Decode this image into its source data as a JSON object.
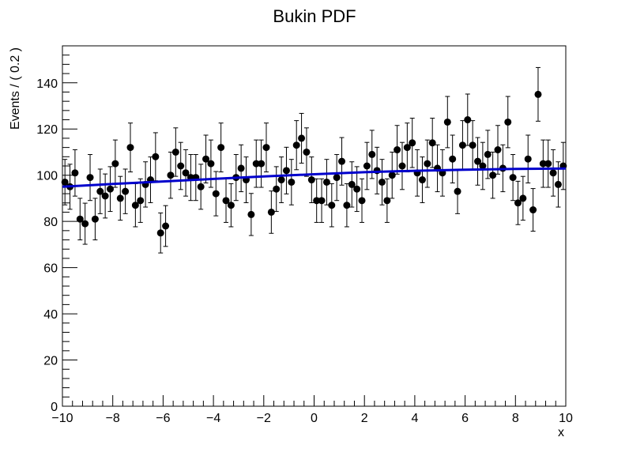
{
  "chart_data": {
    "type": "scatter",
    "title": "Bukin PDF",
    "xlabel": "x",
    "ylabel": "Events / ( 0.2 )",
    "xlim": [
      -10,
      10
    ],
    "ylim": [
      0,
      156
    ],
    "grid": false,
    "x_ticks": [
      -10,
      -8,
      -6,
      -4,
      -2,
      0,
      2,
      4,
      6,
      8,
      10
    ],
    "x_tick_labels": [
      "−10",
      "−8",
      "−6",
      "−4",
      "−2",
      "0",
      "2",
      "4",
      "6",
      "8",
      "10"
    ],
    "y_ticks": [
      0,
      20,
      40,
      60,
      80,
      100,
      120,
      140
    ],
    "y_tick_labels": [
      "0",
      "20",
      "40",
      "60",
      "80",
      "100",
      "120",
      "140"
    ],
    "marker_color": "#000000",
    "fit_color": "#0000cc",
    "series": [
      {
        "kind": "points_with_errors",
        "x": [
          -9.9,
          -9.7,
          -9.5,
          -9.3,
          -9.1,
          -8.9,
          -8.7,
          -8.5,
          -8.3,
          -8.1,
          -7.9,
          -7.7,
          -7.5,
          -7.3,
          -7.1,
          -6.9,
          -6.7,
          -6.5,
          -6.3,
          -6.1,
          -5.9,
          -5.7,
          -5.5,
          -5.3,
          -5.1,
          -4.9,
          -4.7,
          -4.5,
          -4.3,
          -4.1,
          -3.9,
          -3.7,
          -3.5,
          -3.3,
          -3.1,
          -2.9,
          -2.7,
          -2.5,
          -2.3,
          -2.1,
          -1.9,
          -1.7,
          -1.5,
          -1.3,
          -1.1,
          -0.9,
          -0.7,
          -0.5,
          -0.3,
          -0.1,
          0.1,
          0.3,
          0.5,
          0.7,
          0.9,
          1.1,
          1.3,
          1.5,
          1.7,
          1.9,
          2.1,
          2.3,
          2.5,
          2.7,
          2.9,
          3.1,
          3.3,
          3.5,
          3.7,
          3.9,
          4.1,
          4.3,
          4.5,
          4.7,
          4.9,
          5.1,
          5.3,
          5.5,
          5.7,
          5.9,
          6.1,
          6.3,
          6.5,
          6.7,
          6.9,
          7.1,
          7.3,
          7.5,
          7.7,
          7.9,
          8.1,
          8.3,
          8.5,
          8.7,
          8.9,
          9.1,
          9.3,
          9.5,
          9.7,
          9.9
        ],
        "y": [
          97,
          95,
          101,
          81,
          79,
          99,
          81,
          93,
          91,
          94,
          105,
          90,
          93,
          112,
          87,
          89,
          96,
          98,
          108,
          75,
          78,
          100,
          110,
          104,
          101,
          99,
          99,
          95,
          107,
          105,
          92,
          112,
          89,
          87,
          99,
          103,
          98,
          83,
          105,
          105,
          112,
          84,
          94,
          98,
          102,
          97,
          113,
          116,
          110,
          98,
          89,
          89,
          97,
          87,
          99,
          106,
          87,
          96,
          94,
          89,
          104,
          109,
          102,
          97,
          89,
          100,
          111,
          104,
          112,
          114,
          101,
          98,
          105,
          114,
          103,
          101,
          123,
          107,
          93,
          113,
          124,
          113,
          106,
          104,
          109,
          100,
          111,
          103,
          123,
          99,
          88,
          90,
          107,
          85,
          135,
          105,
          105,
          101,
          96,
          104
        ]
      },
      {
        "kind": "fit_curve",
        "x": [
          -10,
          -8,
          -6,
          -4,
          -2,
          0,
          2,
          4,
          6,
          8,
          10
        ],
        "y": [
          95.0,
          96.2,
          97.3,
          98.4,
          99.5,
          100.4,
          101.3,
          101.9,
          102.4,
          102.7,
          102.9
        ]
      }
    ]
  }
}
